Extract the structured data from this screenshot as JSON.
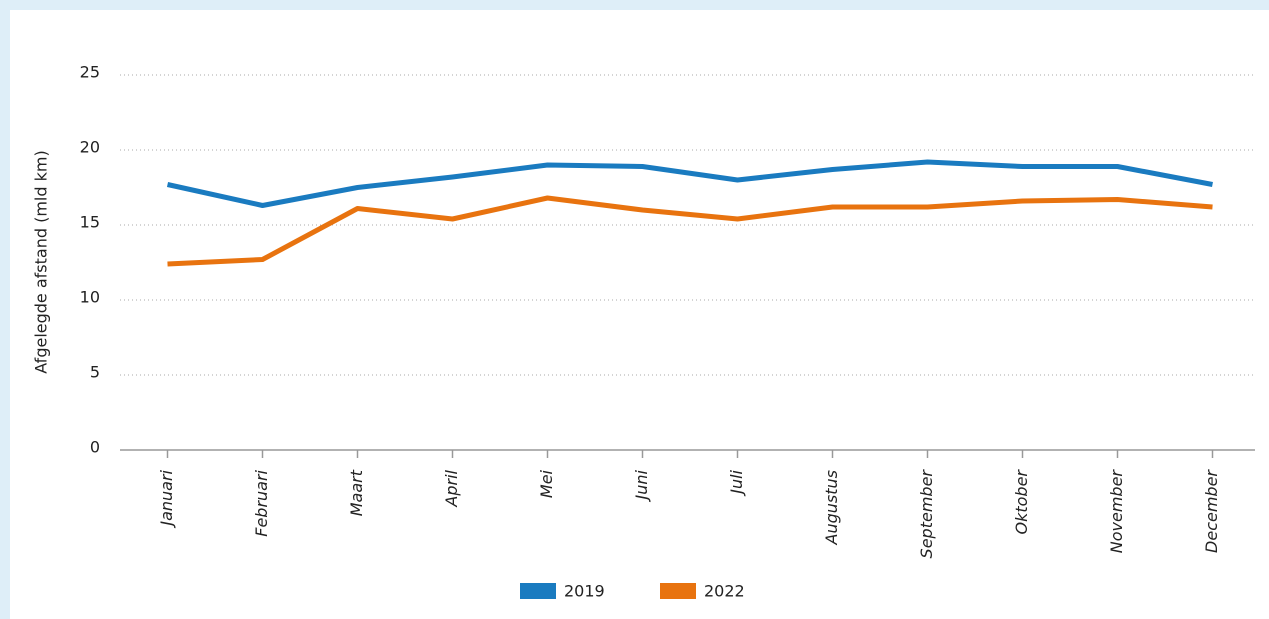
{
  "chart_data": {
    "type": "line",
    "y_label": "Afgelegde afstand (mld km)",
    "categories": [
      "Januari",
      "Februari",
      "Maart",
      "April",
      "Mei",
      "Juni",
      "Juli",
      "Augustus",
      "September",
      "Oktober",
      "November",
      "December"
    ],
    "series": [
      {
        "name": "2019",
        "color": "#1a7bc0",
        "values": [
          17.7,
          16.3,
          17.5,
          18.2,
          19.0,
          18.9,
          18.0,
          18.7,
          19.2,
          18.9,
          18.9,
          17.7
        ]
      },
      {
        "name": "2022",
        "color": "#e8730f",
        "values": [
          12.4,
          12.7,
          16.1,
          15.4,
          16.8,
          16.0,
          15.4,
          16.2,
          16.2,
          16.6,
          16.7,
          16.2
        ]
      }
    ],
    "ylim": [
      0,
      25
    ],
    "yticks": [
      0,
      5,
      10,
      15,
      20,
      25
    ],
    "grid": true,
    "legend": "bottom"
  }
}
